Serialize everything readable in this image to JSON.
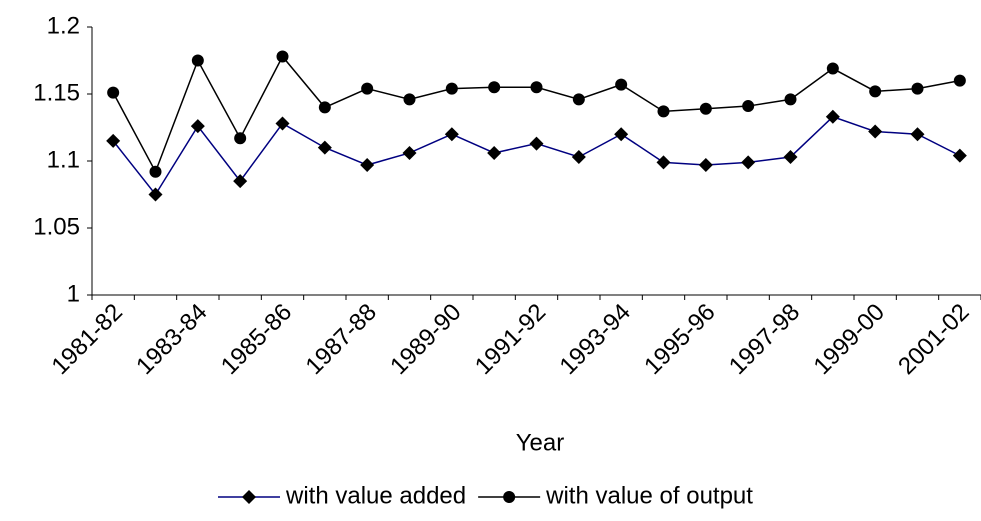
{
  "chart_data": {
    "type": "line",
    "x_label": "Year",
    "categories": [
      "1981-82",
      null,
      "1983-84",
      null,
      "1985-86",
      null,
      "1987-88",
      null,
      "1989-90",
      null,
      "1991-92",
      null,
      "1993-94",
      null,
      "1995-96",
      null,
      "1997-98",
      null,
      "1999-00",
      null,
      "2001-02"
    ],
    "series": [
      {
        "name": "with value added",
        "color": "#000080",
        "marker": "diamond",
        "marker_color": "#000000",
        "values": [
          1.115,
          1.075,
          1.126,
          1.085,
          1.128,
          1.11,
          1.097,
          1.106,
          1.12,
          1.106,
          1.113,
          1.103,
          1.12,
          1.099,
          1.097,
          1.099,
          1.103,
          1.133,
          1.122,
          1.12,
          1.104
        ]
      },
      {
        "name": "with value of output",
        "color": "#000000",
        "marker": "circle",
        "marker_color": "#000000",
        "values": [
          1.151,
          1.092,
          1.175,
          1.117,
          1.178,
          1.14,
          1.154,
          1.146,
          1.154,
          1.155,
          1.155,
          1.146,
          1.157,
          1.137,
          1.139,
          1.141,
          1.146,
          1.169,
          1.152,
          1.154,
          1.16
        ]
      }
    ],
    "ylim": [
      1,
      1.2
    ],
    "yticks": [
      1,
      1.05,
      1.1,
      1.15,
      1.2
    ],
    "grid": false,
    "legend": "bottom"
  }
}
